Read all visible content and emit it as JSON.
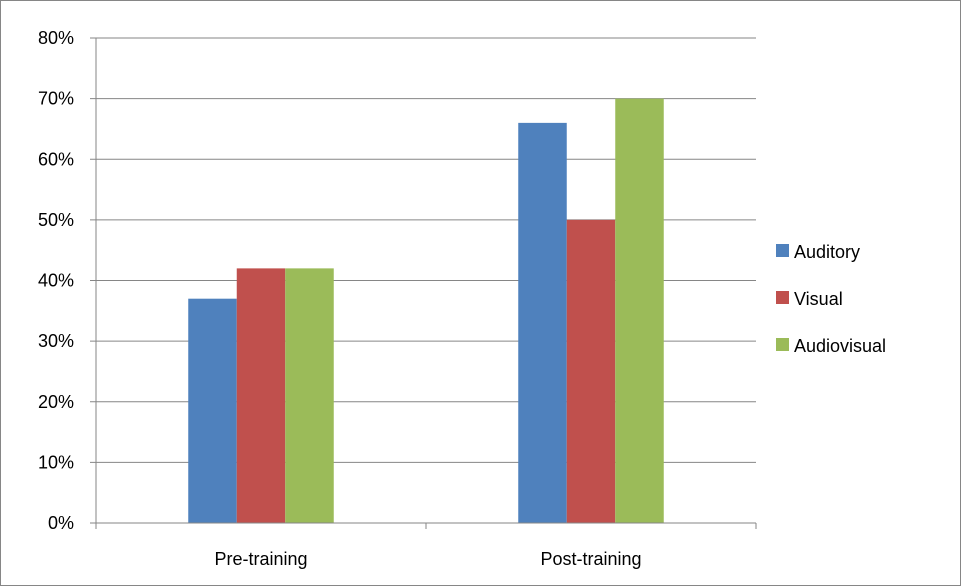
{
  "chart_data": {
    "type": "bar",
    "title": "",
    "xlabel": "",
    "ylabel": "",
    "categories": [
      "Pre-training",
      "Post-training"
    ],
    "series": [
      {
        "name": "Auditory",
        "color": "#4f81bd",
        "values": [
          37,
          66
        ]
      },
      {
        "name": "Visual",
        "color": "#c0504d",
        "values": [
          42,
          50
        ]
      },
      {
        "name": "Audiovisual",
        "color": "#9bbb59",
        "values": [
          42,
          70
        ]
      }
    ],
    "ylim": [
      0,
      80
    ],
    "yticks": [
      0,
      10,
      20,
      30,
      40,
      50,
      60,
      70,
      80
    ],
    "ytick_labels": [
      "0%",
      "10%",
      "20%",
      "30%",
      "40%",
      "50%",
      "60%",
      "70%",
      "80%"
    ],
    "grid": true,
    "legend_position": "right"
  }
}
